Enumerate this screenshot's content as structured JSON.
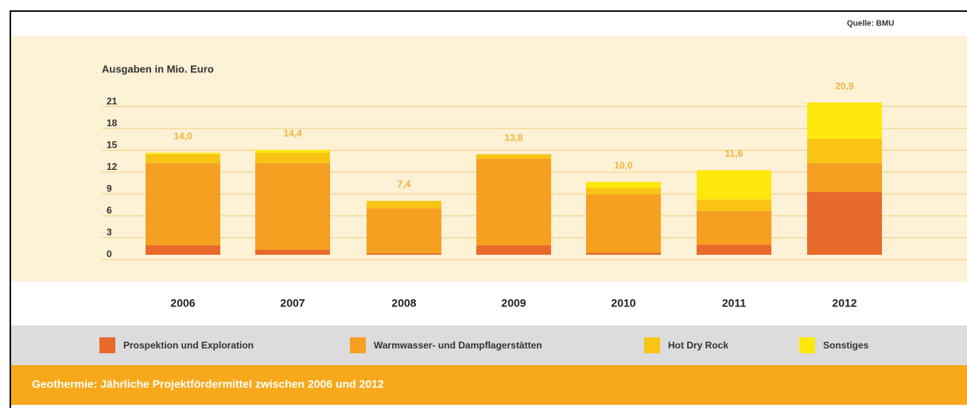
{
  "chart_data": {
    "type": "bar",
    "stacked": true,
    "title": "Geothermie: Jährliche Projektfördermittel zwischen 2006 und 2012",
    "source": "Quelle: BMU",
    "y_label": "Ausgaben in Mio. Euro",
    "categories": [
      "2006",
      "2007",
      "2008",
      "2009",
      "2010",
      "2011",
      "2012"
    ],
    "series": [
      {
        "name": "Prospektion und Exploration",
        "color": "#e8692a",
        "values": [
          1.3,
          0.7,
          0.2,
          1.3,
          0.3,
          1.4,
          8.6
        ]
      },
      {
        "name": "Warmwasser- und Dampflagerstätten",
        "color": "#f5a020",
        "values": [
          11.3,
          11.9,
          6.2,
          11.9,
          8.0,
          4.6,
          4.0
        ]
      },
      {
        "name": "Hot Dry Rock",
        "color": "#f9c414",
        "values": [
          1.2,
          1.4,
          1.0,
          0.6,
          0.9,
          1.6,
          3.3
        ]
      },
      {
        "name": "Sonstiges",
        "color": "#fde80c",
        "values": [
          0.2,
          0.4,
          0,
          0,
          0.8,
          4.0,
          5.0
        ]
      }
    ],
    "totals": {
      "values": [
        14.0,
        14.4,
        7.4,
        13.8,
        10.0,
        11.6,
        20.9
      ],
      "value_labels": [
        "14,0",
        "14,4",
        "7,4",
        "13,8",
        "10,0",
        "11,6",
        "20,9"
      ]
    },
    "ylim": [
      0,
      22
    ],
    "yticks": [
      0,
      3,
      6,
      9,
      12,
      15,
      18,
      21
    ],
    "grid": true
  }
}
